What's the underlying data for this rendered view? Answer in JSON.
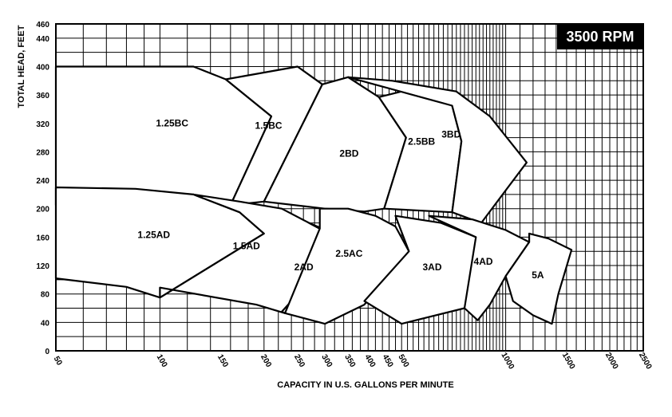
{
  "chart_data": {
    "type": "line",
    "title": "3500 RPM",
    "xlabel": "CAPACITY IN U.S. GALLONS PER MINUTE",
    "ylabel": "TOTAL HEAD, FEET",
    "xscale": "log",
    "xlim": [
      50,
      2500
    ],
    "ylim": [
      0,
      460
    ],
    "grid": true,
    "x_ticks": [
      50,
      100,
      150,
      200,
      250,
      300,
      350,
      400,
      450,
      500,
      1000,
      1500,
      2000,
      2500
    ],
    "y_ticks": [
      0,
      40,
      80,
      120,
      160,
      200,
      240,
      280,
      320,
      360,
      400,
      440,
      460
    ],
    "regions": [
      {
        "name": "1.25BC",
        "outline": [
          [
            50,
            400
          ],
          [
            125,
            400
          ],
          [
            155,
            382
          ],
          [
            210,
            330
          ],
          [
            160,
            205
          ],
          [
            50,
            205
          ]
        ]
      },
      {
        "name": "1.5BC",
        "outline": [
          [
            160,
            205
          ],
          [
            210,
            330
          ],
          [
            155,
            382
          ],
          [
            250,
            400
          ],
          [
            295,
            375
          ],
          [
            200,
            210
          ]
        ]
      },
      {
        "name": "2BD",
        "outline": [
          [
            200,
            210
          ],
          [
            295,
            375
          ],
          [
            350,
            385
          ],
          [
            430,
            357
          ],
          [
            515,
            300
          ],
          [
            445,
            200
          ],
          [
            390,
            196
          ],
          [
            300,
            200
          ]
        ]
      },
      {
        "name": "2.5BB",
        "outline": [
          [
            430,
            357
          ],
          [
            550,
            370
          ],
          [
            700,
            345
          ],
          [
            745,
            295
          ],
          [
            700,
            195
          ],
          [
            445,
            200
          ],
          [
            515,
            300
          ]
        ]
      },
      {
        "name": "3BD",
        "outline": [
          [
            745,
            295
          ],
          [
            700,
            345
          ],
          [
            350,
            385
          ],
          [
            470,
            380
          ],
          [
            720,
            365
          ],
          [
            900,
            330
          ],
          [
            1150,
            265
          ],
          [
            850,
            180
          ],
          [
            700,
            195
          ]
        ]
      },
      {
        "name": "1.25AD",
        "outline": [
          [
            50,
            230
          ],
          [
            85,
            228
          ],
          [
            125,
            220
          ],
          [
            170,
            195
          ],
          [
            200,
            165
          ],
          [
            100,
            75
          ],
          [
            80,
            90
          ],
          [
            50,
            102
          ]
        ]
      },
      {
        "name": "1.5AD",
        "outline": [
          [
            125,
            220
          ],
          [
            170,
            210
          ],
          [
            225,
            200
          ],
          [
            270,
            180
          ],
          [
            295,
            170
          ],
          [
            230,
            53
          ],
          [
            190,
            65
          ],
          [
            100,
            89
          ],
          [
            100,
            75
          ],
          [
            200,
            165
          ],
          [
            170,
            195
          ]
        ]
      },
      {
        "name": "2AD",
        "outline": [
          [
            270,
            180
          ],
          [
            295,
            172
          ],
          [
            280,
            125
          ],
          [
            240,
            70
          ],
          [
            225,
            55
          ],
          [
            230,
            53
          ],
          [
            295,
            170
          ]
        ]
      },
      {
        "name": "2.5AC",
        "outline": [
          [
            290,
            200
          ],
          [
            350,
            200
          ],
          [
            420,
            190
          ],
          [
            480,
            175
          ],
          [
            525,
            140
          ],
          [
            390,
            65
          ],
          [
            300,
            38
          ],
          [
            230,
            53
          ],
          [
            290,
            172
          ]
        ]
      },
      {
        "name": "3AD",
        "outline": [
          [
            480,
            190
          ],
          [
            650,
            180
          ],
          [
            820,
            160
          ],
          [
            1000,
            105
          ],
          [
            760,
            60
          ],
          [
            500,
            38
          ],
          [
            390,
            70
          ],
          [
            525,
            140
          ]
        ]
      },
      {
        "name": "4AD",
        "outline": [
          [
            600,
            190
          ],
          [
            800,
            185
          ],
          [
            1000,
            170
          ],
          [
            1170,
            153
          ],
          [
            1000,
            105
          ],
          [
            900,
            65
          ],
          [
            830,
            43
          ],
          [
            760,
            60
          ],
          [
            820,
            160
          ]
        ]
      },
      {
        "name": "5A",
        "outline": [
          [
            1170,
            165
          ],
          [
            1330,
            158
          ],
          [
            1550,
            142
          ],
          [
            1420,
            80
          ],
          [
            1360,
            38
          ],
          [
            1200,
            50
          ],
          [
            1050,
            70
          ],
          [
            1000,
            105
          ],
          [
            1170,
            153
          ]
        ]
      }
    ]
  }
}
